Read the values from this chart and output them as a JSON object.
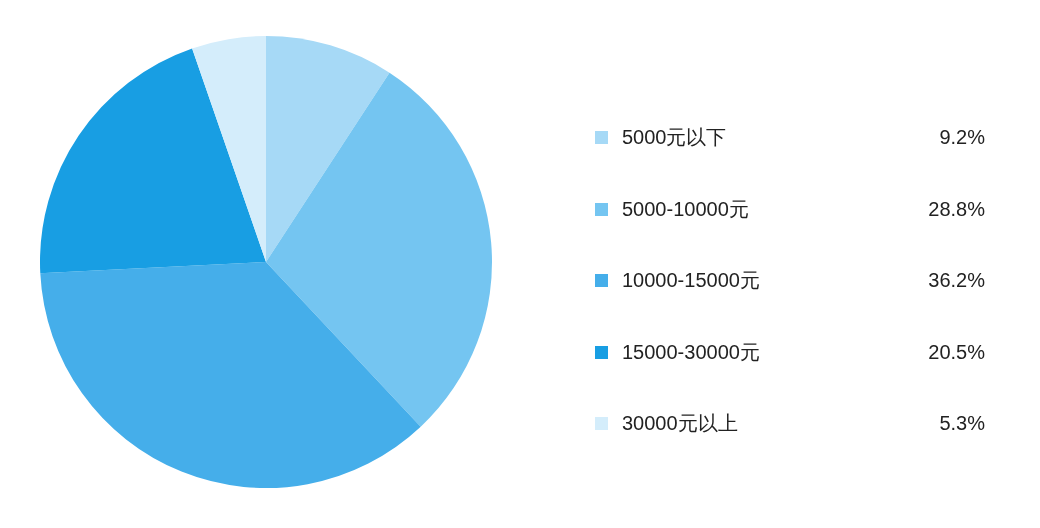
{
  "chart_data": {
    "type": "pie",
    "categories": [
      "5000元以下",
      "5000-10000元",
      "10000-15000元",
      "15000-30000元",
      "30000元以上"
    ],
    "values": [
      9.2,
      28.8,
      36.2,
      20.5,
      5.3
    ],
    "value_labels": [
      "9.2%",
      "28.8%",
      "36.2%",
      "20.5%",
      "5.3%"
    ],
    "colors": [
      "#a6d9f6",
      "#74c5f1",
      "#45aeea",
      "#189ee3",
      "#d4edfb"
    ],
    "legend": "right"
  }
}
